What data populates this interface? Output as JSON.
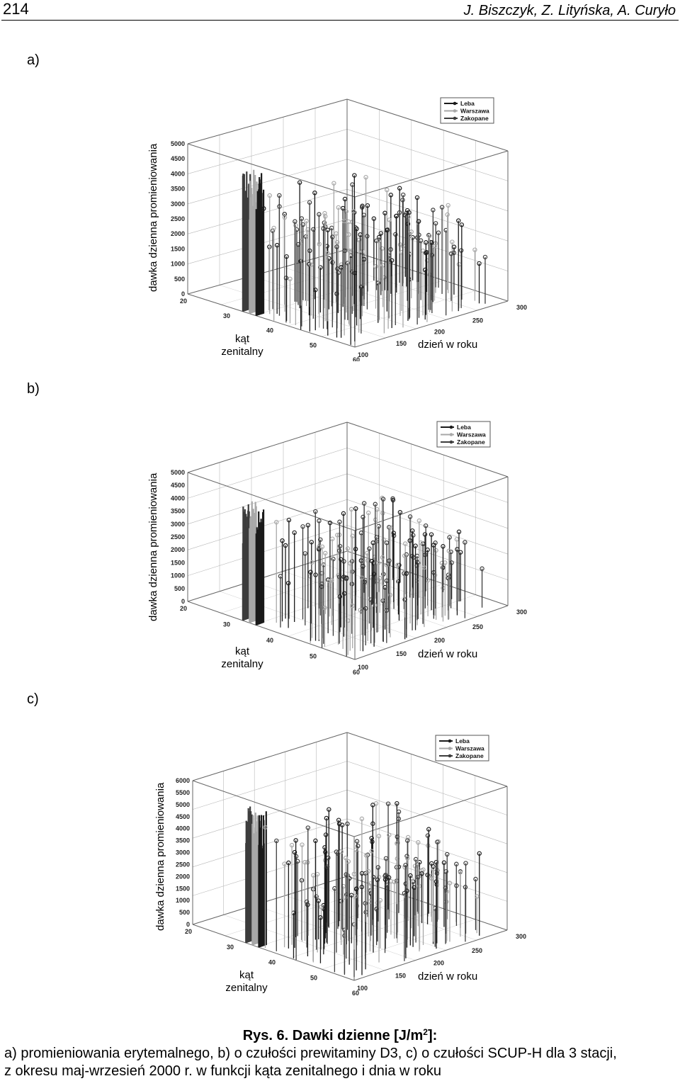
{
  "header": {
    "page_number": "214",
    "authors": "J. Biszczyk, Z. Lityńska, A. Curyło"
  },
  "panels": [
    {
      "label": "a)",
      "ylabel": "dawka dzienna promieniowania",
      "xlabel_line1": "kąt",
      "xlabel_line2": "zenitalny",
      "dlabel": "dzień w roku",
      "z_ticks": [
        "0",
        "500",
        "1000",
        "1500",
        "2000",
        "2500",
        "3000",
        "3500",
        "4000",
        "4500",
        "5000"
      ],
      "angle_ticks": [
        "20",
        "30",
        "40",
        "50",
        "60"
      ],
      "day_ticks": [
        "100",
        "150",
        "200",
        "250",
        "300"
      ],
      "legend": [
        "Leba",
        "Warszawa",
        "Zakopane"
      ]
    },
    {
      "label": "b)",
      "ylabel": "dawka dzienna promieniowania",
      "xlabel_line1": "kąt",
      "xlabel_line2": "zenitalny",
      "dlabel": "dzień w roku",
      "z_ticks": [
        "0",
        "500",
        "1000",
        "1500",
        "2000",
        "2500",
        "3000",
        "3500",
        "4000",
        "4500",
        "5000"
      ],
      "angle_ticks": [
        "20",
        "30",
        "40",
        "50",
        "60"
      ],
      "day_ticks": [
        "100",
        "150",
        "200",
        "250",
        "300"
      ],
      "legend": [
        "Leba",
        "Warszawa",
        "Zakopane"
      ]
    },
    {
      "label": "c)",
      "ylabel": "dawka dzienna promieniowania",
      "xlabel_line1": "kąt",
      "xlabel_line2": "zenitalny",
      "dlabel": "dzień w roku",
      "z_ticks": [
        "0",
        "500",
        "1000",
        "1500",
        "2000",
        "2500",
        "3000",
        "3500",
        "4000",
        "4500",
        "5000",
        "5500",
        "6000"
      ],
      "angle_ticks": [
        "20",
        "30",
        "40",
        "50",
        "60"
      ],
      "day_ticks": [
        "100",
        "150",
        "200",
        "250",
        "300"
      ],
      "legend": [
        "Leba",
        "Warszawa",
        "Zakopane"
      ]
    }
  ],
  "series_colors": {
    "Leba": "#1a1a1a",
    "Warszawa": "#a8a8a8",
    "Zakopane": "#3c3c3c"
  },
  "caption": {
    "title_pre": "Rys. 6. Dawki dzienne [J/m",
    "title_sup": "2",
    "title_post": "]:",
    "line1": "a) promieniowania erytemalnego, b) o czułości prewitaminy D3, c) o czułości SCUP-H dla 3 stacji,",
    "line2": "z okresu maj-wrzesień 2000 r. w funkcji kąta zenitalnego i dnia w roku"
  }
}
